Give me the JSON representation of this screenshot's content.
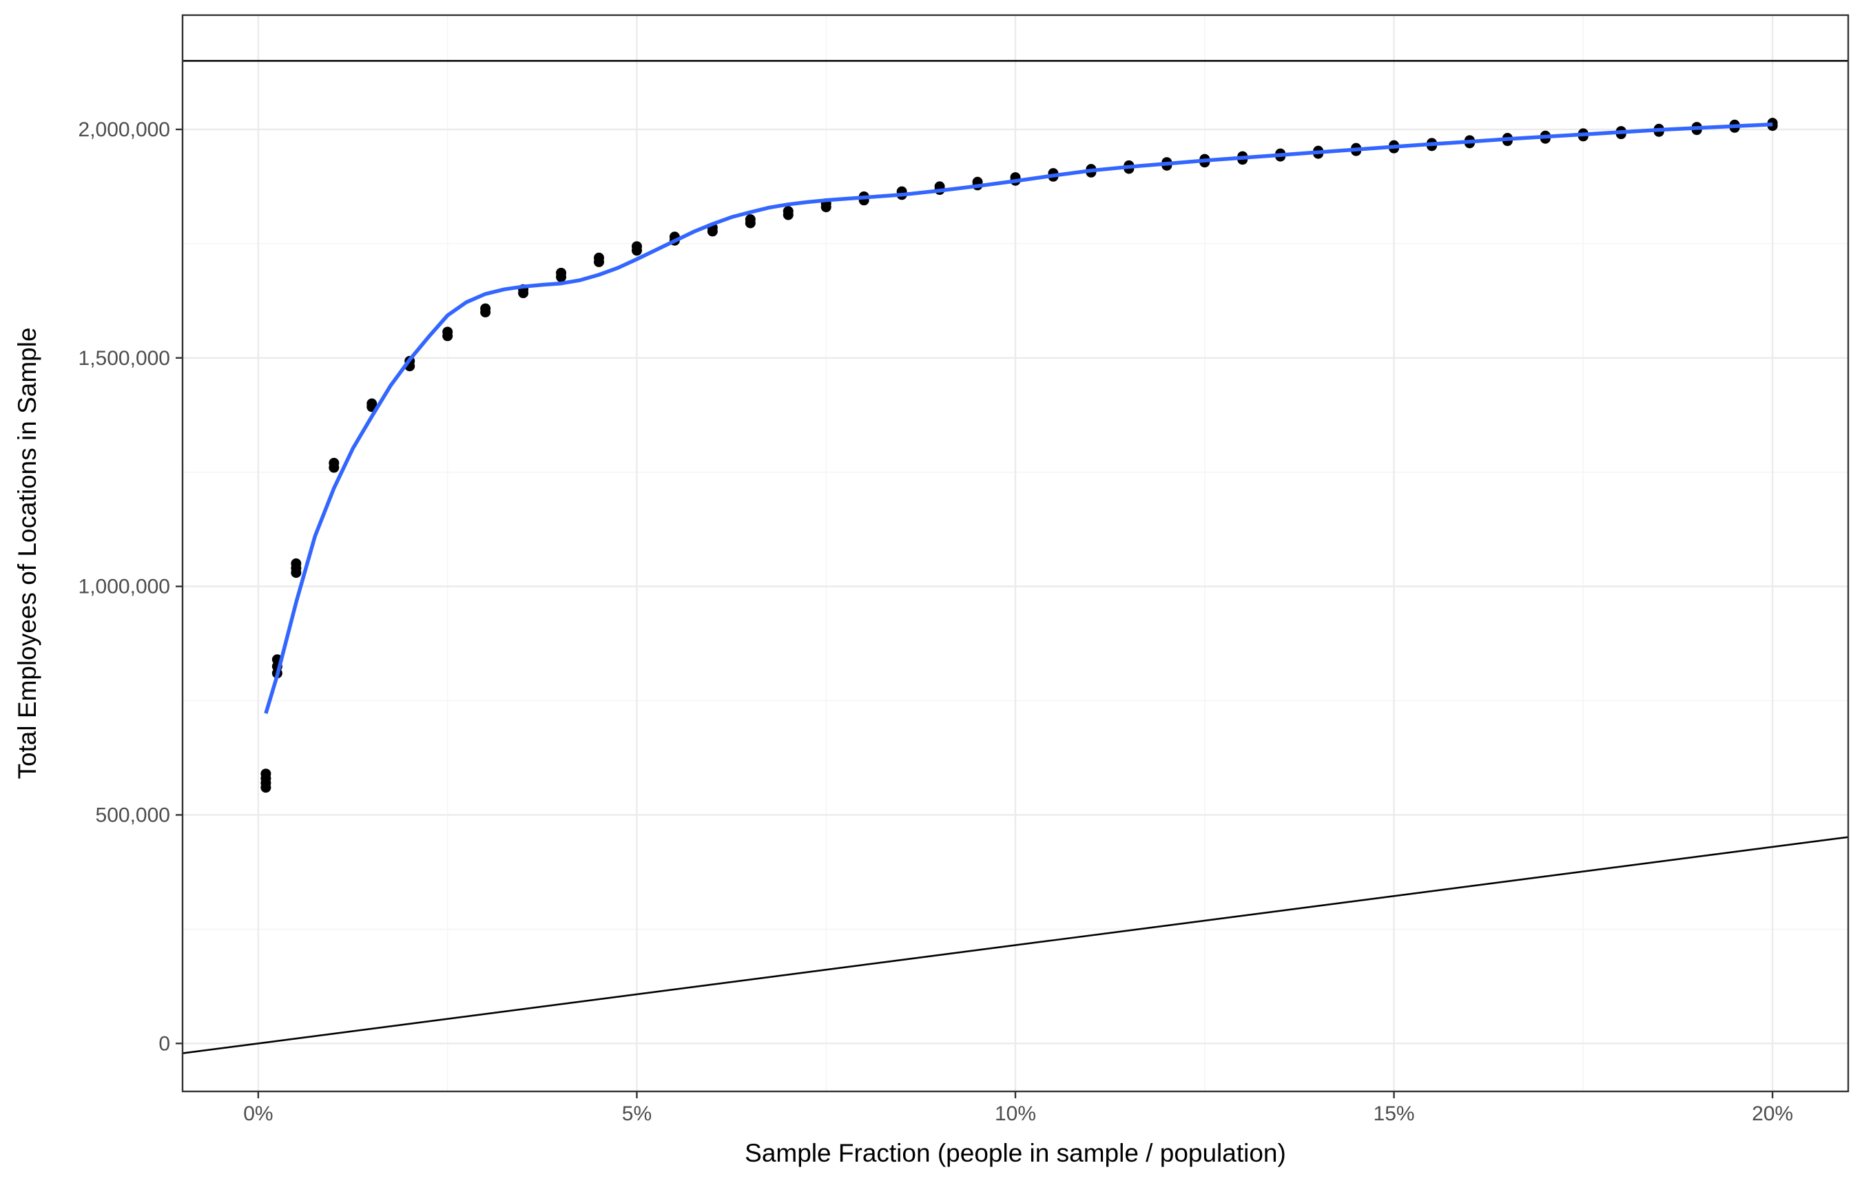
{
  "chart_data": {
    "type": "scatter",
    "title": "",
    "xlabel": "Sample Fraction (people in sample / population)",
    "ylabel": "Total Employees of Locations in Sample",
    "xlim": [
      -0.01,
      0.21
    ],
    "ylim": [
      -105000,
      2250000
    ],
    "x_ticks": [
      0,
      0.05,
      0.1,
      0.15,
      0.2
    ],
    "x_tick_labels": [
      "0%",
      "5%",
      "10%",
      "15%",
      "20%"
    ],
    "y_ticks": [
      0,
      500000,
      1000000,
      1500000,
      2000000
    ],
    "y_tick_labels": [
      "0",
      "500,000",
      "1,000,000",
      "1,500,000",
      "2,000,000"
    ],
    "grid": true,
    "legend": "none",
    "colors": {
      "points": "#000000",
      "smooth": "#3366ff",
      "reference_lines": "#000000",
      "grid_major": "#ebebeb",
      "grid_minor": "#f5f5f5",
      "panel_border": "#333333"
    },
    "series": [
      {
        "type": "points",
        "points": [
          [
            0.001,
            560000
          ],
          [
            0.001,
            570000
          ],
          [
            0.001,
            580000
          ],
          [
            0.001,
            590000
          ],
          [
            0.0025,
            810000
          ],
          [
            0.0025,
            825000
          ],
          [
            0.0025,
            840000
          ],
          [
            0.005,
            1030000
          ],
          [
            0.005,
            1040000
          ],
          [
            0.005,
            1050000
          ],
          [
            0.01,
            1260000
          ],
          [
            0.01,
            1270000
          ],
          [
            0.015,
            1393000
          ],
          [
            0.015,
            1400000
          ],
          [
            0.02,
            1482000
          ],
          [
            0.02,
            1493000
          ],
          [
            0.025,
            1548000
          ],
          [
            0.025,
            1557000
          ],
          [
            0.03,
            1600000
          ],
          [
            0.03,
            1608000
          ],
          [
            0.035,
            1642000
          ],
          [
            0.035,
            1650000
          ],
          [
            0.04,
            1677000
          ],
          [
            0.04,
            1686000
          ],
          [
            0.045,
            1710000
          ],
          [
            0.045,
            1719000
          ],
          [
            0.05,
            1735000
          ],
          [
            0.05,
            1744000
          ],
          [
            0.055,
            1757000
          ],
          [
            0.055,
            1765000
          ],
          [
            0.06,
            1777000
          ],
          [
            0.06,
            1785000
          ],
          [
            0.065,
            1795000
          ],
          [
            0.065,
            1803000
          ],
          [
            0.07,
            1813000
          ],
          [
            0.07,
            1821000
          ],
          [
            0.075,
            1830000
          ],
          [
            0.075,
            1838000
          ],
          [
            0.08,
            1845000
          ],
          [
            0.08,
            1853000
          ],
          [
            0.085,
            1857000
          ],
          [
            0.085,
            1864000
          ],
          [
            0.09,
            1868000
          ],
          [
            0.09,
            1875000
          ],
          [
            0.095,
            1878000
          ],
          [
            0.095,
            1885000
          ],
          [
            0.1,
            1888000
          ],
          [
            0.1,
            1895000
          ],
          [
            0.105,
            1897000
          ],
          [
            0.105,
            1904000
          ],
          [
            0.11,
            1906000
          ],
          [
            0.11,
            1913000
          ],
          [
            0.115,
            1914000
          ],
          [
            0.115,
            1921000
          ],
          [
            0.12,
            1921000
          ],
          [
            0.12,
            1928000
          ],
          [
            0.125,
            1928000
          ],
          [
            0.125,
            1935000
          ],
          [
            0.13,
            1934000
          ],
          [
            0.13,
            1941000
          ],
          [
            0.135,
            1941000
          ],
          [
            0.135,
            1947000
          ],
          [
            0.14,
            1947000
          ],
          [
            0.14,
            1953000
          ],
          [
            0.145,
            1953000
          ],
          [
            0.145,
            1959000
          ],
          [
            0.15,
            1959000
          ],
          [
            0.15,
            1965000
          ],
          [
            0.155,
            1964000
          ],
          [
            0.155,
            1970000
          ],
          [
            0.16,
            1970000
          ],
          [
            0.16,
            1976000
          ],
          [
            0.165,
            1975000
          ],
          [
            0.165,
            1981000
          ],
          [
            0.17,
            1980000
          ],
          [
            0.17,
            1986000
          ],
          [
            0.175,
            1985000
          ],
          [
            0.175,
            1991000
          ],
          [
            0.18,
            1990000
          ],
          [
            0.18,
            1996000
          ],
          [
            0.185,
            1995000
          ],
          [
            0.185,
            2001000
          ],
          [
            0.19,
            1999000
          ],
          [
            0.19,
            2005000
          ],
          [
            0.195,
            2004000
          ],
          [
            0.195,
            2010000
          ],
          [
            0.2,
            2008000
          ],
          [
            0.2,
            2014000
          ]
        ]
      },
      {
        "type": "smooth",
        "points": [
          [
            0.001,
            722000
          ],
          [
            0.0025,
            805000
          ],
          [
            0.005,
            965000
          ],
          [
            0.0075,
            1110000
          ],
          [
            0.01,
            1215000
          ],
          [
            0.0125,
            1302000
          ],
          [
            0.015,
            1372000
          ],
          [
            0.0175,
            1440000
          ],
          [
            0.02,
            1496000
          ],
          [
            0.0225,
            1546000
          ],
          [
            0.025,
            1593000
          ],
          [
            0.0275,
            1622000
          ],
          [
            0.03,
            1640000
          ],
          [
            0.0325,
            1650000
          ],
          [
            0.035,
            1656000
          ],
          [
            0.0375,
            1660000
          ],
          [
            0.04,
            1663000
          ],
          [
            0.0425,
            1670000
          ],
          [
            0.045,
            1682000
          ],
          [
            0.0475,
            1697000
          ],
          [
            0.05,
            1716000
          ],
          [
            0.0525,
            1736000
          ],
          [
            0.055,
            1756000
          ],
          [
            0.0575,
            1776000
          ],
          [
            0.06,
            1793000
          ],
          [
            0.0625,
            1808000
          ],
          [
            0.065,
            1819000
          ],
          [
            0.0675,
            1829000
          ],
          [
            0.07,
            1836000
          ],
          [
            0.0725,
            1841000
          ],
          [
            0.075,
            1845000
          ],
          [
            0.08,
            1851000
          ],
          [
            0.085,
            1857000
          ],
          [
            0.09,
            1866000
          ],
          [
            0.095,
            1876000
          ],
          [
            0.1,
            1887000
          ],
          [
            0.105,
            1899000
          ],
          [
            0.11,
            1910000
          ],
          [
            0.115,
            1918000
          ],
          [
            0.12,
            1925000
          ],
          [
            0.125,
            1932000
          ],
          [
            0.13,
            1938000
          ],
          [
            0.135,
            1944000
          ],
          [
            0.14,
            1950000
          ],
          [
            0.145,
            1956000
          ],
          [
            0.15,
            1962000
          ],
          [
            0.155,
            1968000
          ],
          [
            0.16,
            1973000
          ],
          [
            0.165,
            1979000
          ],
          [
            0.17,
            1984000
          ],
          [
            0.175,
            1989000
          ],
          [
            0.18,
            1994000
          ],
          [
            0.185,
            1999000
          ],
          [
            0.19,
            2003000
          ],
          [
            0.195,
            2007000
          ],
          [
            0.2,
            2011000
          ]
        ]
      }
    ],
    "reference_lines": [
      {
        "type": "hline",
        "y": 2150000
      },
      {
        "type": "abline",
        "intercept": 0,
        "slope": 2150000
      }
    ]
  }
}
